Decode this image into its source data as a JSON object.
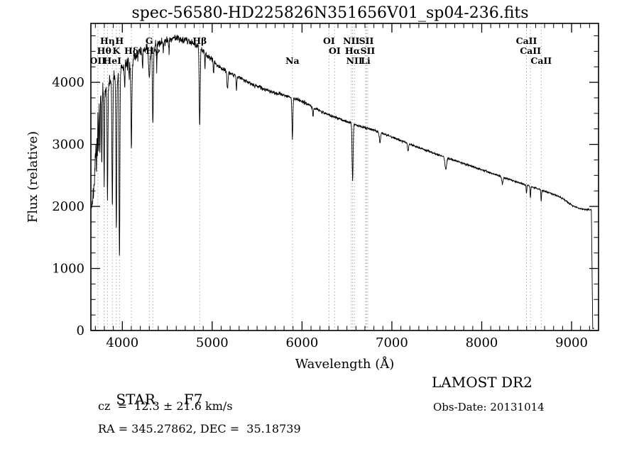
{
  "title": "spec-56580-HD225826N351656V01_sp04-236.fits",
  "annotations": {
    "object_class": "STAR",
    "subclass": "F7",
    "survey": "LAMOST DR2",
    "cz": "cz  =  12.3 ± 21.6 km/s",
    "obs_date": "Obs-Date: 20131014",
    "ra_dec": "RA = 345.27862, DEC =  35.18739"
  },
  "chart_data": {
    "type": "line",
    "title": "spec-56580-HD225826N351656V01_sp04-236.fits",
    "xlabel": "Wavelength (Å)",
    "ylabel": "Flux (relative)",
    "xlim": [
      3650,
      9300
    ],
    "ylim": [
      0,
      4950
    ],
    "xticks": [
      4000,
      5000,
      6000,
      7000,
      8000,
      9000
    ],
    "yticks": [
      0,
      1000,
      2000,
      3000,
      4000
    ],
    "x_minor_step": 100,
    "y_minor_step": 250,
    "grid": false,
    "line_color": "#000000",
    "dotted_line_color": "#ababab",
    "spectral_lines": [
      {
        "label": "Hη",
        "wavelength": 3835,
        "row": 0
      },
      {
        "label": "H",
        "wavelength": 3968,
        "row": 0
      },
      {
        "label": "G",
        "wavelength": 4300,
        "row": 0
      },
      {
        "label": "Hβ",
        "wavelength": 4861,
        "row": 0
      },
      {
        "label": "OI",
        "wavelength": 6300,
        "row": 0
      },
      {
        "label": "NII",
        "wavelength": 6548,
        "row": 0
      },
      {
        "label": "SII",
        "wavelength": 6716,
        "row": 0
      },
      {
        "label": "CaII",
        "wavelength": 8498,
        "row": 0
      },
      {
        "label": "Hθ",
        "wavelength": 3798,
        "row": 1
      },
      {
        "label": "K",
        "wavelength": 3933,
        "row": 1
      },
      {
        "label": "Hδ",
        "wavelength": 4101,
        "row": 1
      },
      {
        "label": "Hγ",
        "wavelength": 4340,
        "row": 1
      },
      {
        "label": "OI",
        "wavelength": 6363,
        "row": 1
      },
      {
        "label": "Hα",
        "wavelength": 6563,
        "row": 1
      },
      {
        "label": "SII",
        "wavelength": 6731,
        "row": 1
      },
      {
        "label": "CaII",
        "wavelength": 8542,
        "row": 1
      },
      {
        "label": "OII",
        "wavelength": 3727,
        "row": 2
      },
      {
        "label": "HeI",
        "wavelength": 3889,
        "row": 2
      },
      {
        "label": "Na",
        "wavelength": 5893,
        "row": 2
      },
      {
        "label": "NII",
        "wavelength": 6583,
        "row": 2
      },
      {
        "label": "Li",
        "wavelength": 6708,
        "row": 2
      },
      {
        "label": "CaII",
        "wavelength": 8662,
        "row": 2
      }
    ],
    "spectrum": {
      "start": 3655,
      "end": 9248,
      "step": 2.5,
      "seed": 7,
      "continuum": [
        [
          3655,
          2000
        ],
        [
          3675,
          2150
        ],
        [
          3695,
          2550
        ],
        [
          3710,
          3100
        ],
        [
          3725,
          3550
        ],
        [
          3745,
          3800
        ],
        [
          3775,
          3820
        ],
        [
          3810,
          3880
        ],
        [
          3850,
          3980
        ],
        [
          3900,
          4060
        ],
        [
          3950,
          4120
        ],
        [
          4000,
          4230
        ],
        [
          4060,
          4300
        ],
        [
          4120,
          4380
        ],
        [
          4180,
          4460
        ],
        [
          4240,
          4520
        ],
        [
          4300,
          4560
        ],
        [
          4360,
          4610
        ],
        [
          4420,
          4640
        ],
        [
          4480,
          4670
        ],
        [
          4540,
          4700
        ],
        [
          4600,
          4720
        ],
        [
          4660,
          4700
        ],
        [
          4720,
          4680
        ],
        [
          4780,
          4640
        ],
        [
          4840,
          4590
        ],
        [
          4900,
          4500
        ],
        [
          4960,
          4410
        ],
        [
          5020,
          4330
        ],
        [
          5100,
          4230
        ],
        [
          5200,
          4150
        ],
        [
          5300,
          4080
        ],
        [
          5400,
          4000
        ],
        [
          5500,
          3940
        ],
        [
          5600,
          3880
        ],
        [
          5700,
          3830
        ],
        [
          5800,
          3790
        ],
        [
          5900,
          3745
        ],
        [
          6000,
          3700
        ],
        [
          6100,
          3615
        ],
        [
          6200,
          3540
        ],
        [
          6300,
          3475
        ],
        [
          6400,
          3420
        ],
        [
          6500,
          3370
        ],
        [
          6600,
          3315
        ],
        [
          6700,
          3270
        ],
        [
          6800,
          3230
        ],
        [
          6900,
          3175
        ],
        [
          7000,
          3120
        ],
        [
          7100,
          3060
        ],
        [
          7200,
          3005
        ],
        [
          7300,
          2950
        ],
        [
          7400,
          2895
        ],
        [
          7500,
          2840
        ],
        [
          7600,
          2790
        ],
        [
          7700,
          2740
        ],
        [
          7800,
          2690
        ],
        [
          7900,
          2640
        ],
        [
          8000,
          2590
        ],
        [
          8100,
          2540
        ],
        [
          8200,
          2490
        ],
        [
          8300,
          2440
        ],
        [
          8400,
          2390
        ],
        [
          8500,
          2345
        ],
        [
          8600,
          2295
        ],
        [
          8700,
          2245
        ],
        [
          8800,
          2195
        ],
        [
          8900,
          2130
        ],
        [
          9000,
          2020
        ],
        [
          9100,
          1960
        ],
        [
          9220,
          1945
        ],
        [
          9228,
          1000
        ],
        [
          9235,
          30
        ],
        [
          9248,
          25
        ]
      ],
      "absorption_features": [
        [
          3712,
          600,
          3
        ],
        [
          3722,
          700,
          3
        ],
        [
          3734,
          800,
          3
        ],
        [
          3750,
          1000,
          3.5
        ],
        [
          3771,
          1200,
          3.5
        ],
        [
          3798,
          1500,
          4
        ],
        [
          3835,
          1800,
          4.5
        ],
        [
          3889,
          2000,
          5
        ],
        [
          3933,
          2500,
          4.5
        ],
        [
          3968,
          3000,
          5
        ],
        [
          4026,
          350,
          3
        ],
        [
          4077,
          300,
          3
        ],
        [
          4101,
          1350,
          5.5
        ],
        [
          4226,
          300,
          3
        ],
        [
          4300,
          450,
          8
        ],
        [
          4340,
          1300,
          5.5
        ],
        [
          4383,
          380,
          3
        ],
        [
          4455,
          220,
          3
        ],
        [
          4520,
          200,
          3
        ],
        [
          4861,
          1250,
          5.5
        ],
        [
          4920,
          250,
          3
        ],
        [
          5015,
          200,
          3
        ],
        [
          5170,
          280,
          6
        ],
        [
          5270,
          230,
          4
        ],
        [
          5893,
          660,
          5
        ],
        [
          6122,
          150,
          4
        ],
        [
          6563,
          920,
          5.5
        ],
        [
          6867,
          160,
          7
        ],
        [
          7180,
          120,
          6
        ],
        [
          7600,
          190,
          9
        ],
        [
          8230,
          120,
          6
        ],
        [
          8498,
          140,
          3.5
        ],
        [
          8542,
          180,
          3.5
        ],
        [
          8662,
          180,
          3.5
        ]
      ],
      "noise_profile": [
        [
          3655,
          135
        ],
        [
          3900,
          115
        ],
        [
          4200,
          95
        ],
        [
          4600,
          65
        ],
        [
          5000,
          42
        ],
        [
          5400,
          32
        ],
        [
          6000,
          26
        ],
        [
          6500,
          22
        ],
        [
          7000,
          19
        ],
        [
          7600,
          16
        ],
        [
          8200,
          15
        ],
        [
          9000,
          13
        ],
        [
          9250,
          10
        ]
      ]
    }
  }
}
